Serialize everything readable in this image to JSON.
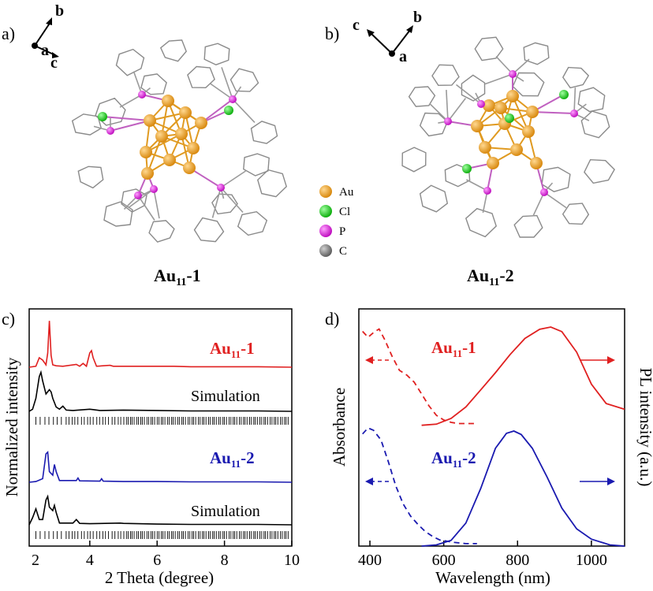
{
  "panels": {
    "a": {
      "label": "a)",
      "axes_letters": [
        "b",
        "a",
        "c"
      ],
      "caption": {
        "main": "Au",
        "sub": "11",
        "suffix": "-1"
      }
    },
    "b": {
      "label": "b)",
      "axes_letters": [
        "c",
        "b",
        "a"
      ],
      "caption": {
        "main": "Au",
        "sub": "11",
        "suffix": "-2"
      }
    },
    "legend": {
      "items": [
        {
          "label": "Au",
          "color": "#f0a020"
        },
        {
          "label": "Cl",
          "color": "#22cc22"
        },
        {
          "label": "P",
          "color": "#e020e0"
        },
        {
          "label": "C",
          "color": "#808080"
        }
      ]
    }
  },
  "chart_data": [
    {
      "panel": "c)",
      "type": "line",
      "xlabel": "2 Theta (degree)",
      "ylabel": "Normalized intensity",
      "xlim": [
        2.2,
        10
      ],
      "xticks": [
        2,
        4,
        6,
        8,
        10
      ],
      "grid": false,
      "series": [
        {
          "name": "Au11-1",
          "label": {
            "main": "Au",
            "sub": "11",
            "suffix": "-1"
          },
          "color": "#e02020",
          "x": [
            2.2,
            2.4,
            2.5,
            2.6,
            2.7,
            2.75,
            2.8,
            2.85,
            2.9,
            3.0,
            3.2,
            3.6,
            3.7,
            3.8,
            3.9,
            4.0,
            4.05,
            4.1,
            4.2,
            4.6,
            4.7,
            5.0,
            5.5,
            6.0,
            6.5,
            7.0,
            8.0,
            9.0,
            10.0
          ],
          "y": [
            0.0,
            0.02,
            0.2,
            0.15,
            0.05,
            0.3,
            0.98,
            0.25,
            0.05,
            0.03,
            0.02,
            0.06,
            0.02,
            0.08,
            0.02,
            0.3,
            0.35,
            0.2,
            0.02,
            0.04,
            0.02,
            0.02,
            0.02,
            0.02,
            0.02,
            0.01,
            0.01,
            0.01,
            0.0
          ]
        },
        {
          "name": "Simulation",
          "color": "#000000",
          "x": [
            2.2,
            2.3,
            2.4,
            2.5,
            2.55,
            2.6,
            2.7,
            2.8,
            2.85,
            2.9,
            3.0,
            3.1,
            3.2,
            3.3,
            3.5,
            4.0,
            4.1,
            4.3,
            5.0,
            6.0,
            7.0,
            8.0,
            9.0,
            10.0
          ],
          "y": [
            0.0,
            0.05,
            0.3,
            0.8,
            0.9,
            0.7,
            0.4,
            0.5,
            0.45,
            0.3,
            0.1,
            0.05,
            0.12,
            0.03,
            0.02,
            0.05,
            0.04,
            0.02,
            0.03,
            0.02,
            0.01,
            0.01,
            0.01,
            0.0
          ]
        },
        {
          "name": "Au11-2",
          "label": {
            "main": "Au",
            "sub": "11",
            "suffix": "-2"
          },
          "color": "#1a1ab0",
          "x": [
            2.2,
            2.4,
            2.6,
            2.7,
            2.75,
            2.8,
            2.9,
            2.95,
            3.0,
            3.1,
            3.6,
            3.65,
            3.7,
            4.3,
            4.35,
            4.4,
            5.0,
            6.0,
            7.0,
            8.0,
            9.0,
            10.0
          ],
          "y": [
            0.0,
            0.02,
            0.1,
            0.8,
            0.85,
            0.3,
            0.2,
            0.5,
            0.3,
            0.05,
            0.05,
            0.12,
            0.04,
            0.03,
            0.1,
            0.03,
            0.02,
            0.02,
            0.01,
            0.01,
            0.01,
            0.0
          ]
        },
        {
          "name": "Simulation",
          "color": "#000000",
          "x": [
            2.2,
            2.3,
            2.4,
            2.5,
            2.6,
            2.7,
            2.75,
            2.8,
            2.9,
            2.95,
            3.0,
            3.1,
            3.5,
            3.6,
            3.7,
            4.0,
            4.9,
            5.0,
            6.0,
            7.0,
            8.0,
            9.0,
            10.0
          ],
          "y": [
            0.0,
            0.2,
            0.45,
            0.15,
            0.15,
            0.7,
            0.8,
            0.5,
            0.4,
            0.55,
            0.35,
            0.05,
            0.05,
            0.15,
            0.04,
            0.03,
            0.05,
            0.04,
            0.02,
            0.01,
            0.01,
            0.01,
            0.0
          ]
        }
      ]
    },
    {
      "panel": "d)",
      "type": "line",
      "xlabel": "Wavelength (nm)",
      "ylabel": "Absorbance",
      "y2label": "PL intensity (a.u.)",
      "xlim": [
        370,
        1090
      ],
      "xticks": [
        400,
        600,
        800,
        1000
      ],
      "grid": false,
      "series": [
        {
          "name": "Au11-1 absorbance",
          "label": {
            "main": "Au",
            "sub": "11",
            "suffix": "-1"
          },
          "color": "#e02020",
          "style": "dashed",
          "x": [
            380,
            395,
            410,
            425,
            440,
            460,
            480,
            500,
            520,
            540,
            560,
            580,
            600,
            620,
            640,
            660,
            680,
            690
          ],
          "y": [
            0.93,
            0.88,
            0.92,
            0.95,
            0.86,
            0.72,
            0.6,
            0.56,
            0.5,
            0.4,
            0.3,
            0.22,
            0.18,
            0.16,
            0.15,
            0.15,
            0.15,
            0.15
          ]
        },
        {
          "name": "Au11-1 PL",
          "color": "#e02020",
          "style": "solid",
          "x": [
            540,
            580,
            620,
            660,
            700,
            740,
            780,
            820,
            860,
            890,
            920,
            960,
            1000,
            1040,
            1090
          ],
          "y": [
            0.14,
            0.15,
            0.2,
            0.3,
            0.45,
            0.6,
            0.76,
            0.9,
            0.98,
            1.0,
            0.96,
            0.78,
            0.5,
            0.33,
            0.28
          ]
        },
        {
          "name": "Au11-2 absorbance",
          "label": {
            "main": "Au",
            "sub": "11",
            "suffix": "-2"
          },
          "color": "#1a1ab0",
          "style": "dashed",
          "x": [
            380,
            395,
            410,
            430,
            450,
            470,
            490,
            510,
            530,
            550,
            570,
            590,
            610,
            630,
            660,
            690
          ],
          "y": [
            0.93,
            0.98,
            0.96,
            0.88,
            0.7,
            0.5,
            0.35,
            0.25,
            0.18,
            0.12,
            0.08,
            0.05,
            0.04,
            0.03,
            0.02,
            0.02
          ]
        },
        {
          "name": "Au11-2 PL",
          "color": "#1a1ab0",
          "style": "solid",
          "x": [
            540,
            580,
            620,
            660,
            700,
            740,
            770,
            790,
            810,
            840,
            880,
            920,
            960,
            1000,
            1050,
            1090
          ],
          "y": [
            0.0,
            0.01,
            0.05,
            0.2,
            0.5,
            0.85,
            0.98,
            1.0,
            0.97,
            0.85,
            0.6,
            0.33,
            0.15,
            0.06,
            0.01,
            0.0
          ]
        }
      ]
    }
  ]
}
